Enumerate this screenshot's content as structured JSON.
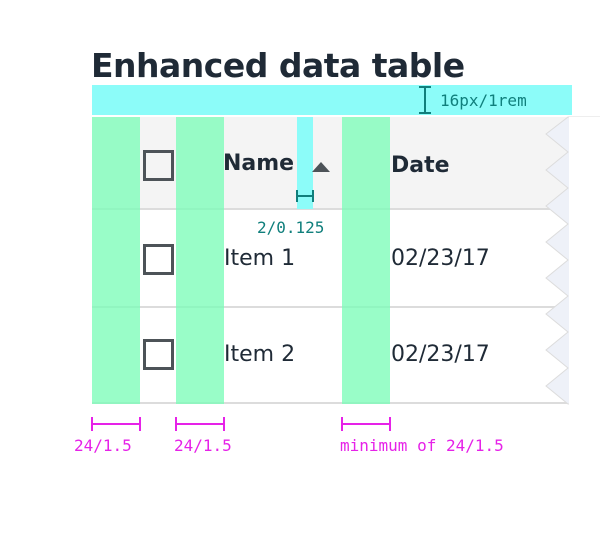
{
  "title": "Enhanced data table",
  "table": {
    "headers": {
      "name": "Name",
      "date": "Date"
    },
    "rows": [
      {
        "name": "Item 1",
        "date": "02/23/17"
      },
      {
        "name": "Item 2",
        "date": "02/23/17"
      }
    ]
  },
  "annotations": {
    "top_padding": "16px/1rem",
    "sort_icon_gap": "2/0.125",
    "col1_width": "24/1.5",
    "col2_width": "24/1.5",
    "col3_width": "minimum of 24/1.5"
  },
  "colors": {
    "spacing_cyan": "#8cfcf9",
    "spacing_green": "#7cfcb9",
    "annotation_magenta": "#e622e8",
    "annotation_teal": "#107f7c",
    "text": "#1f2a36"
  }
}
